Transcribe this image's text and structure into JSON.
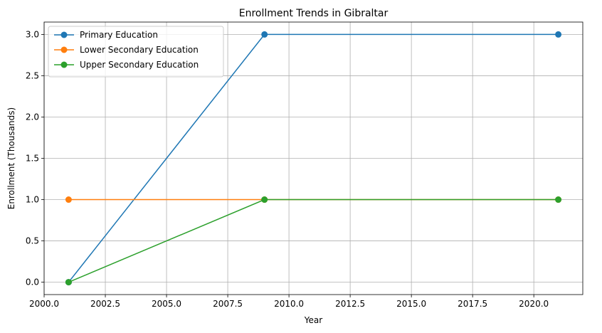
{
  "chart_data": {
    "type": "line",
    "title": "Enrollment Trends in Gibraltar",
    "xlabel": "Year",
    "ylabel": "Enrollment (Thousands)",
    "x": [
      2001,
      2009,
      2021
    ],
    "xlim": [
      2000.0,
      2022.0
    ],
    "ylim": [
      -0.15,
      3.15
    ],
    "xticks": [
      "2000.0",
      "2002.5",
      "2005.0",
      "2007.5",
      "2010.0",
      "2012.5",
      "2015.0",
      "2017.5",
      "2020.0"
    ],
    "xtick_values": [
      2000.0,
      2002.5,
      2005.0,
      2007.5,
      2010.0,
      2012.5,
      2015.0,
      2017.5,
      2020.0
    ],
    "yticks": [
      "0.0",
      "0.5",
      "1.0",
      "1.5",
      "2.0",
      "2.5",
      "3.0"
    ],
    "ytick_values": [
      0.0,
      0.5,
      1.0,
      1.5,
      2.0,
      2.5,
      3.0
    ],
    "grid": true,
    "legend_position": "top-left",
    "series": [
      {
        "name": "Primary Education",
        "values": [
          0,
          3,
          3
        ],
        "color": "#1f77b4"
      },
      {
        "name": "Lower Secondary Education",
        "values": [
          1,
          1,
          1
        ],
        "color": "#ff7f0e"
      },
      {
        "name": "Upper Secondary Education",
        "values": [
          0,
          1,
          1
        ],
        "color": "#2ca02c"
      }
    ]
  }
}
